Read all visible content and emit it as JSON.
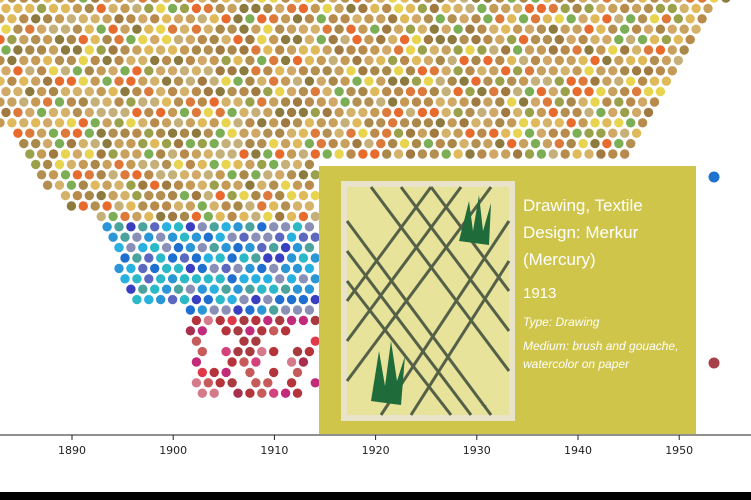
{
  "axis": {
    "ticks": [
      "1890",
      "1900",
      "1910",
      "1920",
      "1930",
      "1940",
      "1950"
    ]
  },
  "tooltip": {
    "title": "Drawing, Textile Design: Merkur (Mercury)",
    "year": "1913",
    "type": "Type: Drawing",
    "medium": "Medium: brush and gouache, watercolor on paper",
    "background": "#cfc54a"
  },
  "dots": {
    "palette": [
      "#c9a15e",
      "#b88b4d",
      "#d4b26a",
      "#a9884a",
      "#c49a55",
      "#8c7a3e",
      "#d1a867",
      "#e0b95a",
      "#b39052",
      "#a07a40",
      "#dd7a3b",
      "#e86a2d",
      "#c6b07a",
      "#9aa14a",
      "#7cae56",
      "#e8d44f"
    ],
    "cool_palette": [
      "#2a96d6",
      "#2bb9c7",
      "#1e6fcf",
      "#3a3fc2",
      "#5c68bf",
      "#8a8fb8",
      "#4aa39c",
      "#27b0e0"
    ],
    "warm_palette": [
      "#c22a7a",
      "#d4427e",
      "#b5333a",
      "#a93a3f",
      "#c75a5a",
      "#e03a4a",
      "#a8304e",
      "#d47a8a"
    ],
    "isolated_blue": "#1e73cf",
    "isolated_red": "#a8404a"
  }
}
